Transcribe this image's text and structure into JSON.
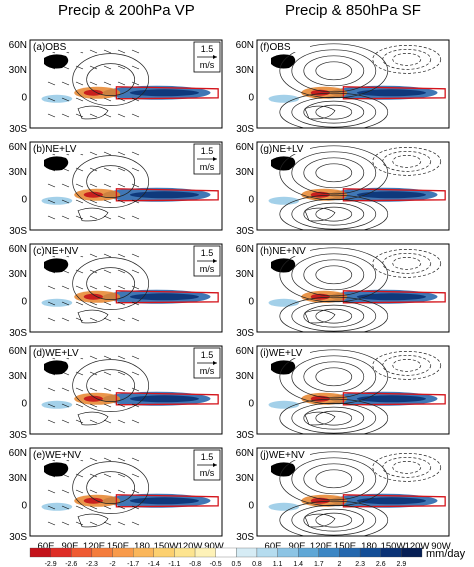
{
  "columns": [
    {
      "title": "Precip & 200hPa VP"
    },
    {
      "title": "Precip & 850hPa SF"
    }
  ],
  "panels_left": [
    {
      "label": "(a)OBS"
    },
    {
      "label": "(b)NE+LV"
    },
    {
      "label": "(c)NE+NV"
    },
    {
      "label": "(d)WE+LV"
    },
    {
      "label": "(e)WE+NV"
    }
  ],
  "panels_right": [
    {
      "label": "(f)OBS"
    },
    {
      "label": "(g)NE+LV"
    },
    {
      "label": "(h)NE+NV"
    },
    {
      "label": "(i)WE+LV"
    },
    {
      "label": "(j)WE+NV"
    }
  ],
  "lat_labels": [
    "60N",
    "30N",
    "0",
    "30S"
  ],
  "lon_labels": [
    "60E",
    "90E",
    "120E",
    "150E",
    "180",
    "150W",
    "120W",
    "90W"
  ],
  "ref_vector": {
    "value": "1.5",
    "unit": "m/s"
  },
  "colorbar": {
    "values": [
      "-2.9",
      "-2.6",
      "-2.3",
      "-2",
      "-1.7",
      "-1.4",
      "-1.1",
      "-0.8",
      "-0.5",
      "0.5",
      "0.8",
      "1.1",
      "1.4",
      "1.7",
      "2",
      "2.3",
      "2.6",
      "2.9"
    ],
    "unit": "mm/day",
    "colors": [
      "#c4121a",
      "#de2d26",
      "#ef5a32",
      "#f47c3c",
      "#f89a4a",
      "#fab65a",
      "#fcd06f",
      "#fde48f",
      "#fef2b8",
      "#ffffff",
      "#d6ecf5",
      "#b5dcef",
      "#8cc4e4",
      "#5fa7d6",
      "#3b86c4",
      "#2367ae",
      "#124d96",
      "#0a3275",
      "#061f55"
    ]
  },
  "colors": {
    "precip_wet": "#1f5fa8",
    "precip_dry": "#e6842b",
    "contour": "#222222",
    "land": "#000000",
    "box": "#d4141b"
  }
}
